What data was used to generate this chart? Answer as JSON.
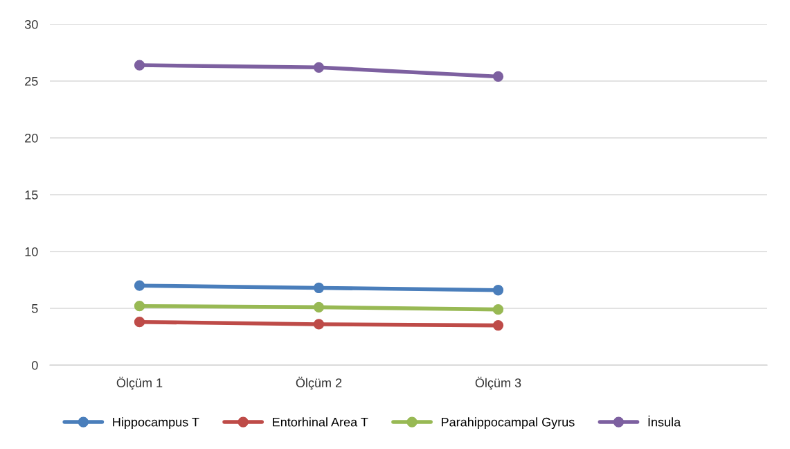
{
  "chart_data": {
    "type": "line",
    "categories": [
      "Ölçüm 1",
      "Ölçüm 2",
      "Ölçüm 3",
      null
    ],
    "series": [
      {
        "name": "Hippocampus T",
        "color": "#4a7ebb",
        "values": [
          7.0,
          6.8,
          6.6,
          null
        ]
      },
      {
        "name": "Entorhinal Area T",
        "color": "#be4b48",
        "values": [
          3.8,
          3.6,
          3.5,
          null
        ]
      },
      {
        "name": "Parahippocampal Gyrus",
        "color": "#98b954",
        "values": [
          5.2,
          5.1,
          4.9,
          null
        ]
      },
      {
        "name": "İnsula",
        "color": "#7d60a0",
        "values": [
          26.4,
          26.2,
          25.4,
          null
        ]
      }
    ],
    "ylim": [
      0,
      30
    ],
    "yticks": [
      0,
      5,
      10,
      15,
      20,
      25,
      30
    ],
    "grid": "y",
    "legend": "bottom",
    "marker": "circle",
    "line_style": "solid"
  }
}
